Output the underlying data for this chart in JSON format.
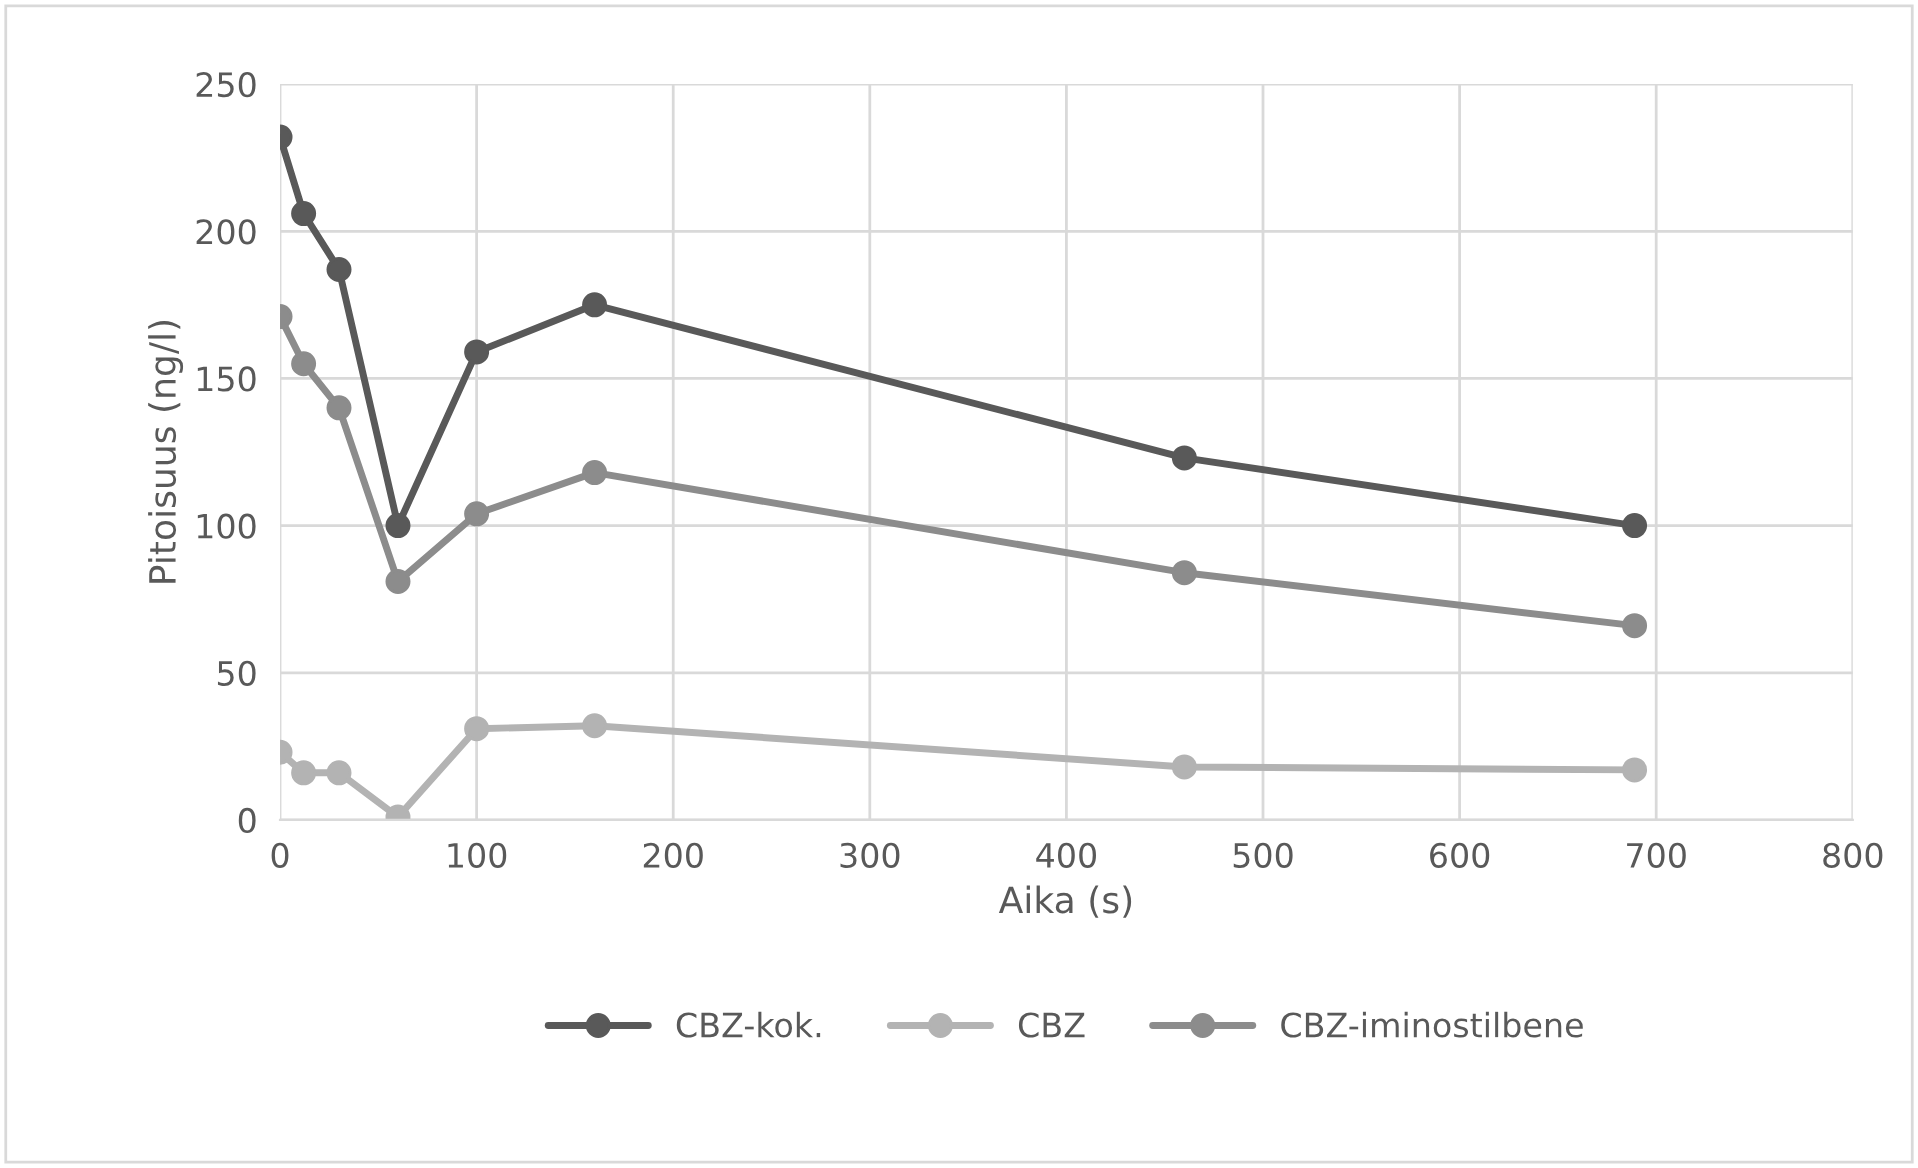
{
  "chart_data": {
    "type": "line",
    "xlabel": "Aika (s)",
    "ylabel": "Pitoisuus (ng/l)",
    "x": [
      0,
      12,
      30,
      60,
      100,
      160,
      460,
      689
    ],
    "series": [
      {
        "name": "CBZ-kok.",
        "color": "#595959",
        "values": [
          232,
          206,
          187,
          100,
          159,
          175,
          123,
          100
        ]
      },
      {
        "name": "CBZ",
        "color": "#b3b3b3",
        "values": [
          23,
          16,
          16,
          1,
          31,
          32,
          18,
          17
        ]
      },
      {
        "name": "CBZ-iminostilbene",
        "color": "#8c8c8c",
        "values": [
          171,
          155,
          140,
          81,
          104,
          118,
          84,
          66
        ]
      }
    ],
    "xlim": [
      0,
      800
    ],
    "xticks": [
      0,
      100,
      200,
      300,
      400,
      500,
      600,
      700,
      800
    ],
    "ylim": [
      0,
      250
    ],
    "yticks": [
      0,
      50,
      100,
      150,
      200,
      250
    ],
    "grid": true,
    "legend": "bottom",
    "marker": "circle",
    "line_style": "solid"
  }
}
